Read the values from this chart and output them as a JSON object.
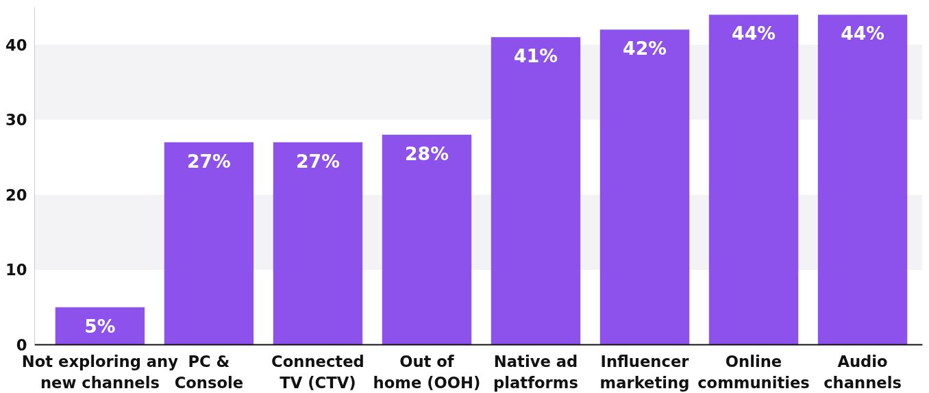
{
  "chart_data": {
    "type": "bar",
    "categories": [
      "Not exploring any\nnew channels",
      "PC &\nConsole",
      "Connected\nTV (CTV)",
      "Out of\nhome (OOH)",
      "Native ad\nplatforms",
      "Influencer\nmarketing",
      "Online\ncommunities",
      "Audio\nchannels"
    ],
    "values": [
      5,
      27,
      27,
      28,
      41,
      42,
      44,
      44
    ],
    "value_labels": [
      "5%",
      "27%",
      "27%",
      "28%",
      "41%",
      "42%",
      "44%",
      "44%"
    ],
    "color": "#8c52eb",
    "ylim": [
      0,
      45
    ],
    "yticks": [
      0,
      10,
      20,
      30,
      40
    ],
    "bands": [
      {
        "axis": "y",
        "from": 10,
        "to": 20,
        "color": "#f3f3f5"
      },
      {
        "axis": "y",
        "from": 30,
        "to": 40,
        "color": "#f3f3f5"
      }
    ],
    "grid": false
  }
}
